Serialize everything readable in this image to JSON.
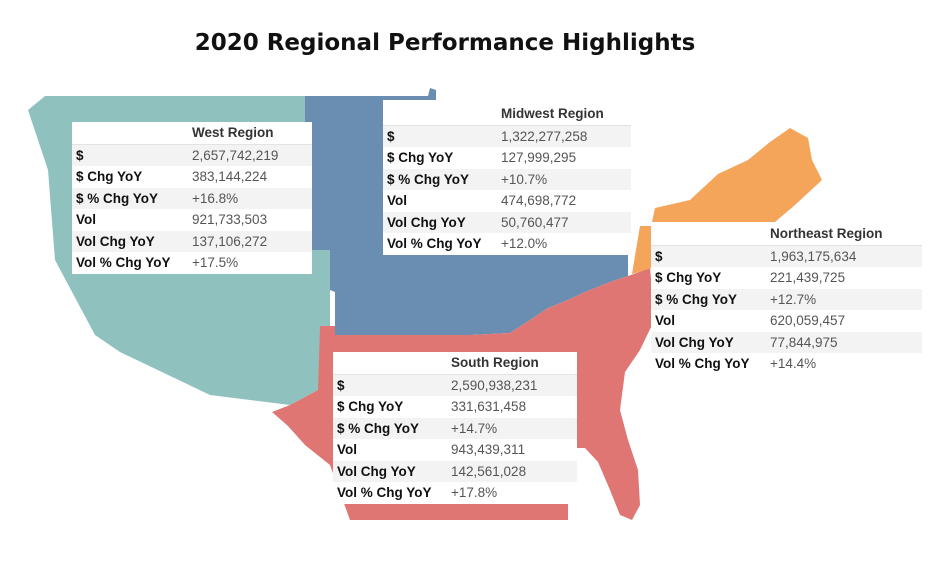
{
  "title": "2020 Regional Performance Highlights",
  "colors": {
    "west": "#8fc2bf",
    "midwest": "#6a8db2",
    "south": "#e07673",
    "northeast": "#f4a55a"
  },
  "chart_data": {
    "type": "table",
    "title": "2020 Regional Performance Highlights",
    "metrics": [
      "$",
      "$ Chg YoY",
      "$ % Chg YoY",
      "Vol",
      "Vol Chg YoY",
      "Vol % Chg YoY"
    ],
    "regions": [
      {
        "key": "west",
        "name": "West Region",
        "values": [
          "2,657,742,219",
          "383,144,224",
          "+16.8%",
          "921,733,503",
          "137,106,272",
          "+17.5%"
        ]
      },
      {
        "key": "midwest",
        "name": "Midwest Region",
        "values": [
          "1,322,277,258",
          "127,999,295",
          "+10.7%",
          "474,698,772",
          "50,760,477",
          "+12.0%"
        ]
      },
      {
        "key": "northeast",
        "name": "Northeast Region",
        "values": [
          "1,963,175,634",
          "221,439,725",
          "+12.7%",
          "620,059,457",
          "77,844,975",
          "+14.4%"
        ]
      },
      {
        "key": "south",
        "name": "South Region",
        "values": [
          "2,590,938,231",
          "331,631,458",
          "+14.7%",
          "943,439,311",
          "142,561,028",
          "+17.8%"
        ]
      }
    ]
  }
}
